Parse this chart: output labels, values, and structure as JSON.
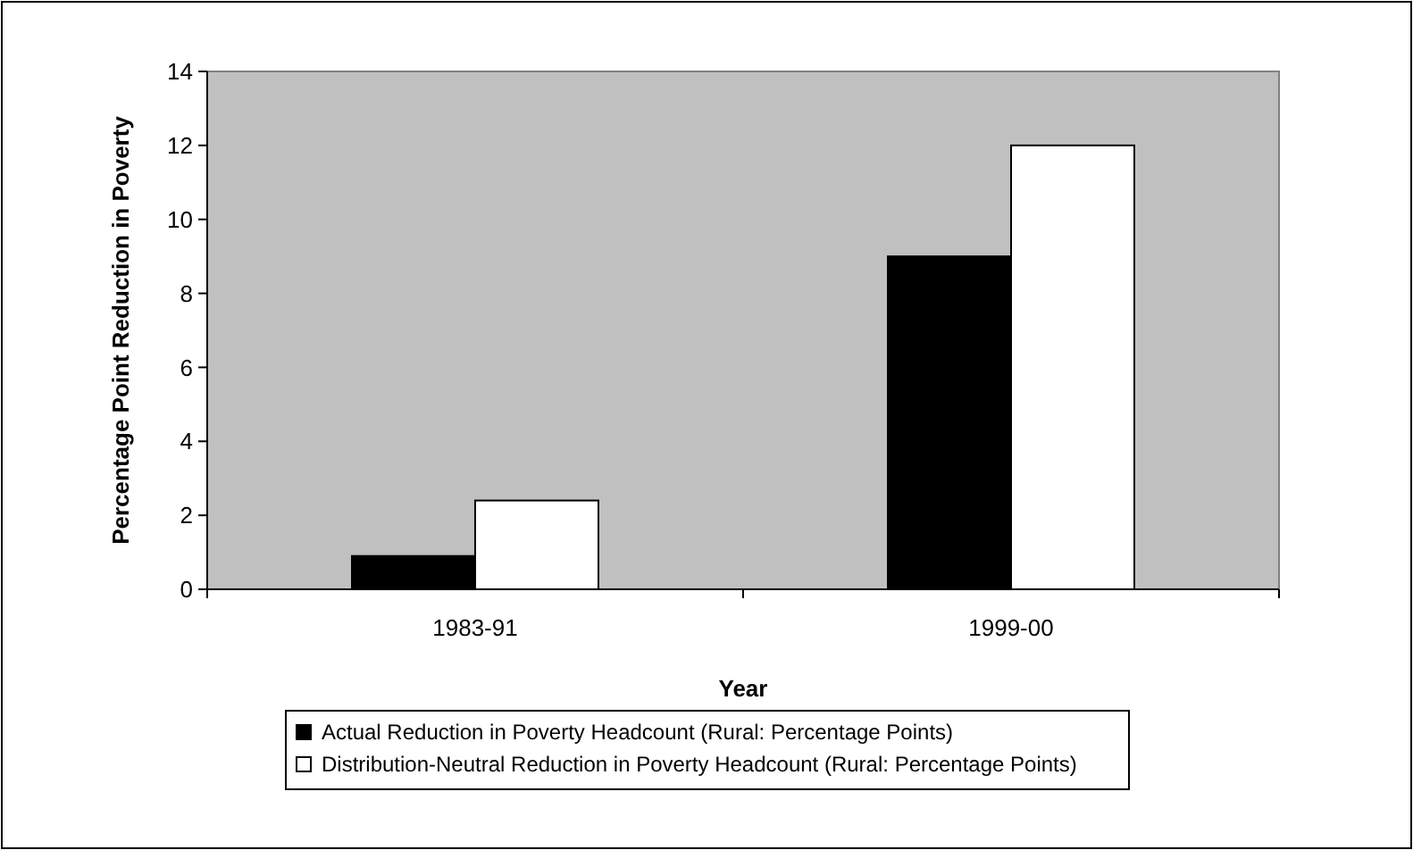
{
  "chart_data": {
    "type": "bar",
    "xlabel": "Year",
    "ylabel": "Percentage Point Reduction in Poverty",
    "categories": [
      "1983-91",
      "1999-00"
    ],
    "series": [
      {
        "name": "Actual Reduction in Poverty Headcount (Rural: Percentage Points)",
        "color": "#000000",
        "values": [
          0.9,
          9
        ]
      },
      {
        "name": "Distribution-Neutral Reduction in Poverty Headcount (Rural: Percentage Points)",
        "color": "#ffffff",
        "values": [
          2.4,
          12
        ]
      }
    ],
    "ylim": [
      0,
      14
    ],
    "yticks": [
      0,
      2,
      4,
      6,
      8,
      10,
      12,
      14
    ],
    "grid": false,
    "legend": "bottom"
  }
}
